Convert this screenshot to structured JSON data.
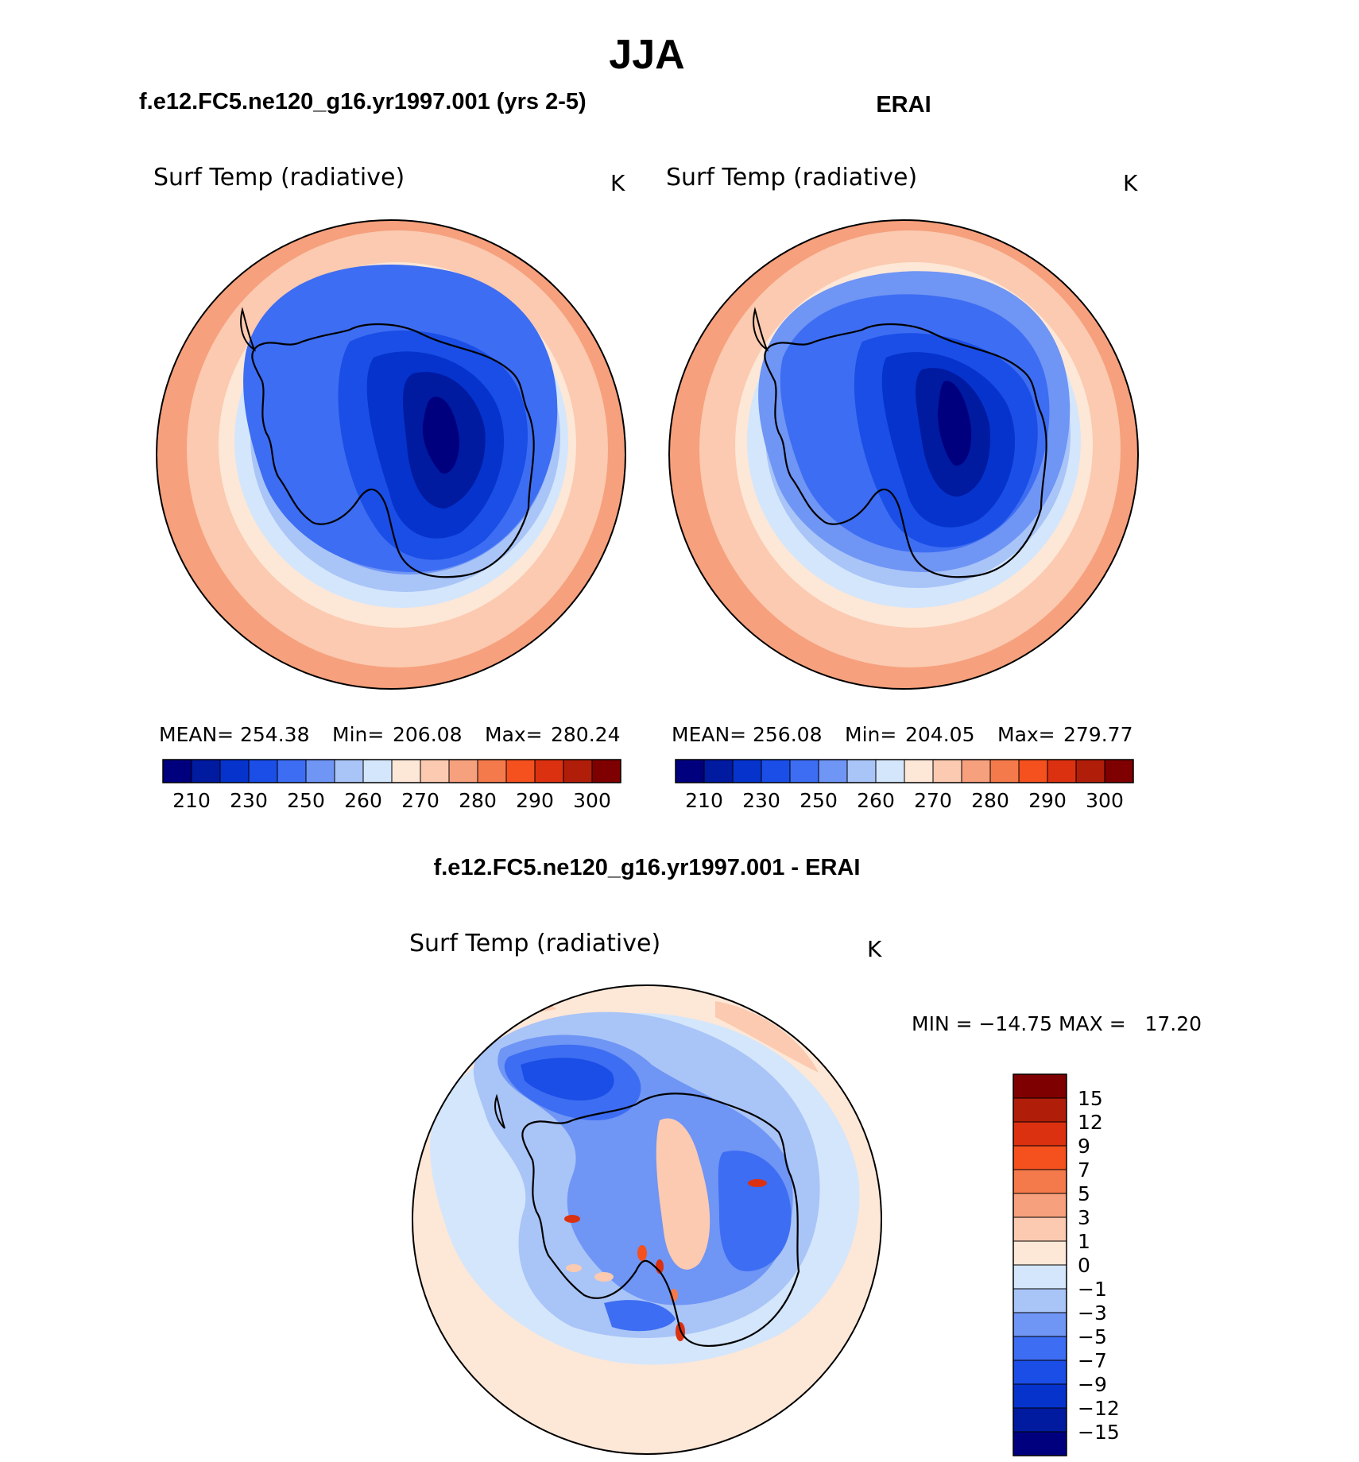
{
  "figure": {
    "title": "JJA",
    "left_panel_header": "f.e12.FC5.ne120_g16.yr1997.001 (yrs 2-5)",
    "right_panel_header": "ERAI",
    "diff_panel_header": "f.e12.FC5.ne120_g16.yr1997.001 - ERAI"
  },
  "chart_data": [
    {
      "type": "heatmap",
      "projection": "south-polar-stereographic",
      "panel": "model",
      "variable": "Surf Temp (radiative)",
      "units": "K",
      "stats": {
        "mean_label": "MEAN=",
        "mean": "254.38",
        "min_label": "Min=",
        "min": "206.08",
        "max_label": "Max=",
        "max": "280.24"
      },
      "contour_levels": [
        210,
        220,
        230,
        240,
        250,
        255,
        260,
        265,
        270,
        275,
        280,
        285,
        290,
        295,
        300
      ],
      "colorbar_labels": [
        "210",
        "230",
        "250",
        "260",
        "270",
        "280",
        "290",
        "300"
      ],
      "colors": [
        "#00007f",
        "#001aa0",
        "#0533cc",
        "#1a4ee6",
        "#3d6df2",
        "#6f95f5",
        "#a9c4f7",
        "#d4e6fb",
        "#fde7d7",
        "#fbcab0",
        "#f6a07d",
        "#f47a4b",
        "#f4511e",
        "#dc3110",
        "#b01e0a",
        "#7f0000"
      ]
    },
    {
      "type": "heatmap",
      "projection": "south-polar-stereographic",
      "panel": "ERAI",
      "variable": "Surf Temp (radiative)",
      "units": "K",
      "stats": {
        "mean_label": "MEAN=",
        "mean": "256.08",
        "min_label": "Min=",
        "min": "204.05",
        "max_label": "Max=",
        "max": "279.77"
      },
      "contour_levels": [
        210,
        220,
        230,
        240,
        250,
        255,
        260,
        265,
        270,
        275,
        280,
        285,
        290,
        295,
        300
      ],
      "colorbar_labels": [
        "210",
        "230",
        "250",
        "260",
        "270",
        "280",
        "290",
        "300"
      ],
      "colors": [
        "#00007f",
        "#001aa0",
        "#0533cc",
        "#1a4ee6",
        "#3d6df2",
        "#6f95f5",
        "#a9c4f7",
        "#d4e6fb",
        "#fde7d7",
        "#fbcab0",
        "#f6a07d",
        "#f47a4b",
        "#f4511e",
        "#dc3110",
        "#b01e0a",
        "#7f0000"
      ]
    },
    {
      "type": "heatmap",
      "projection": "south-polar-stereographic",
      "panel": "difference",
      "variable": "Surf Temp (radiative)",
      "units": "K",
      "stats": {
        "text": "MIN = −14.75 MAX =   17.20",
        "min": -14.75,
        "max": 17.2
      },
      "contour_levels": [
        -15,
        -12,
        -9,
        -7,
        -5,
        -3,
        -1,
        0,
        1,
        3,
        5,
        7,
        9,
        12,
        15
      ],
      "colorbar_labels": [
        "15",
        "12",
        "9",
        "7",
        "5",
        "3",
        "1",
        "0",
        "−1",
        "−3",
        "−5",
        "−7",
        "−9",
        "−12",
        "−15"
      ],
      "colors": [
        "#7f0000",
        "#b01e0a",
        "#dc3110",
        "#f4511e",
        "#f47a4b",
        "#f6a07d",
        "#fbcab0",
        "#fde7d7",
        "#d4e6fb",
        "#a9c4f7",
        "#6f95f5",
        "#3d6df2",
        "#1a4ee6",
        "#0533cc",
        "#001aa0",
        "#00007f"
      ]
    }
  ]
}
